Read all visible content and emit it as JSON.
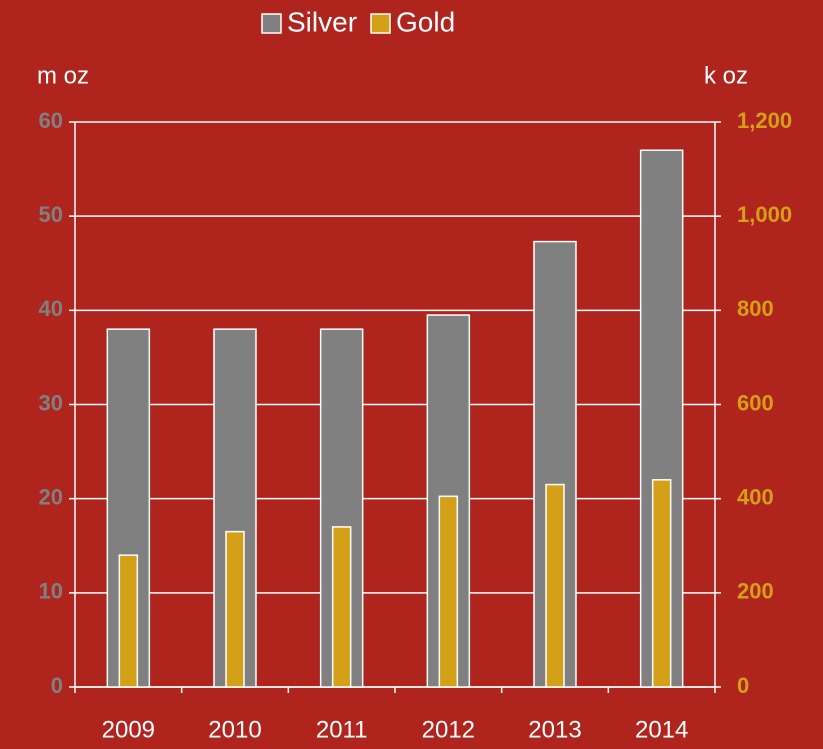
{
  "chart_data": {
    "type": "bar",
    "categories": [
      "2009",
      "2010",
      "2011",
      "2012",
      "2013",
      "2014"
    ],
    "series": [
      {
        "name": "Silver",
        "color": "#808080",
        "values": [
          38,
          38,
          38,
          39.5,
          47.3,
          57
        ]
      },
      {
        "name": "Gold",
        "color": "#d4a017",
        "axis": "y2",
        "values": [
          280,
          330,
          340,
          405,
          430,
          440
        ]
      }
    ],
    "ylabel": "m oz",
    "y2label": "k oz",
    "ylim": [
      0,
      60
    ],
    "yticks": [
      0,
      10,
      20,
      30,
      40,
      50,
      60
    ],
    "y2lim": [
      0,
      1200
    ],
    "y2ticks": [
      0,
      200,
      400,
      600,
      800,
      {
        "value": 1000,
        "label": "1,000"
      },
      {
        "value": 1200,
        "label": "1,200"
      }
    ],
    "grid": true,
    "legend": "top"
  }
}
